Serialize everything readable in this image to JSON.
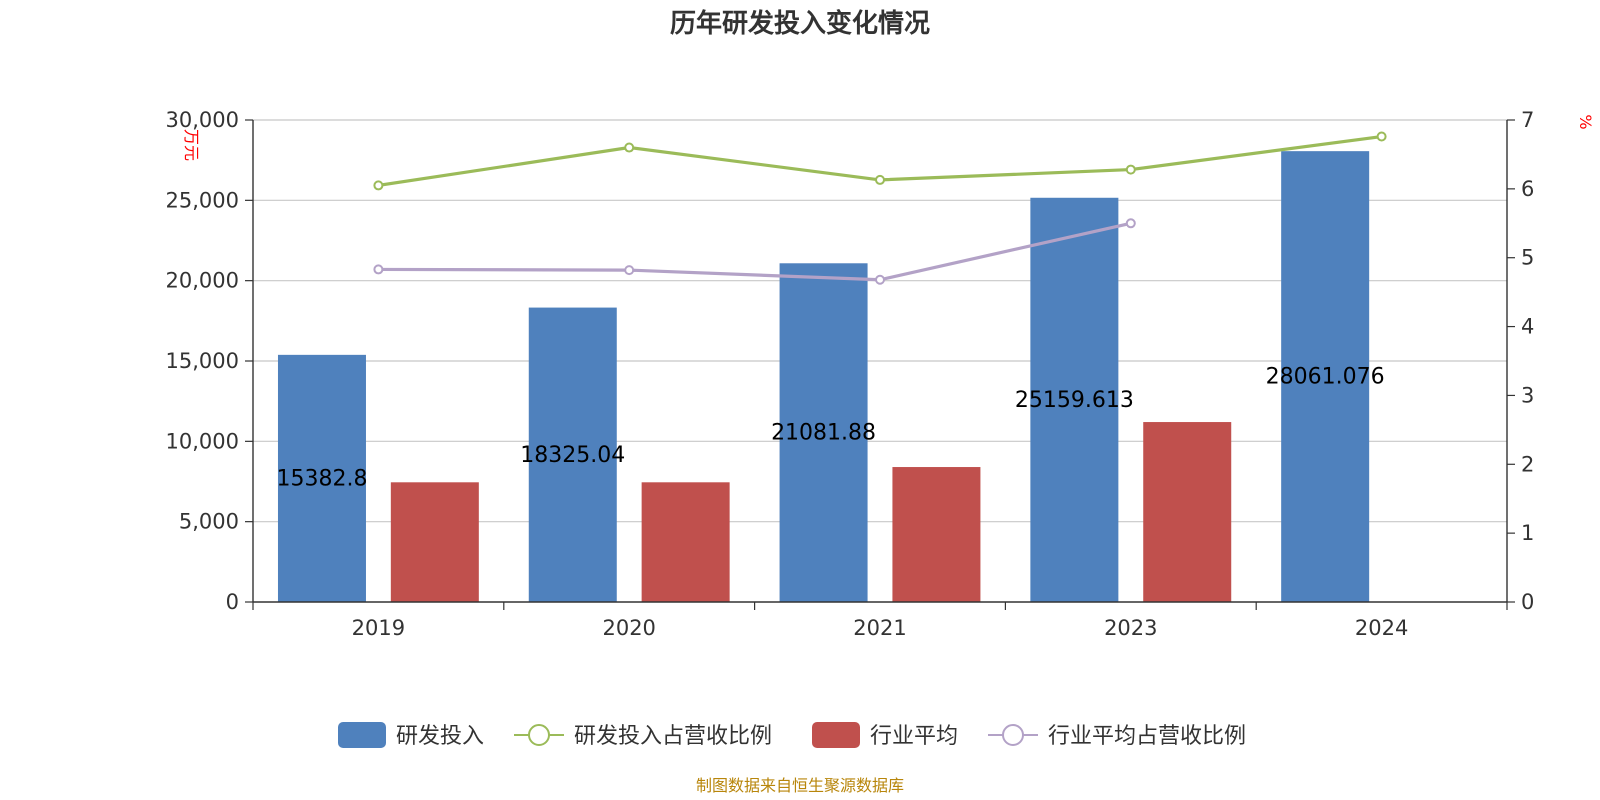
{
  "colors": {
    "rd_bar": "#4f81bd",
    "ind_bar": "#c0504d",
    "rd_line": "#9bbb59",
    "ind_line": "#b3a2c7",
    "grid": "#c8c8c8",
    "axis": "#333333",
    "unit": "#ff0000",
    "source": "#b8860b"
  },
  "chart_data": {
    "type": "bar",
    "title": "历年研发投入变化情况",
    "categories": [
      "2019",
      "2020",
      "2021",
      "2023",
      "2024"
    ],
    "y_left": {
      "unit": "万元",
      "ylim": [
        0,
        30000
      ],
      "ticks": [
        "0",
        "5,000",
        "10,000",
        "15,000",
        "20,000",
        "25,000",
        "30,000"
      ]
    },
    "y_right": {
      "unit": "%",
      "ylim": [
        0,
        7
      ],
      "ticks": [
        "0",
        "1",
        "2",
        "3",
        "4",
        "5",
        "6",
        "7"
      ]
    },
    "series": [
      {
        "name": "研发投入",
        "type": "bar",
        "axis": "left",
        "values": [
          15382.8,
          18325.04,
          21081.88,
          25159.613,
          28061.076
        ],
        "labels": [
          "15382.8",
          "18325.04",
          "21081.88",
          "25159.613",
          "28061.076"
        ]
      },
      {
        "name": "研发投入占营收比例",
        "type": "line",
        "axis": "right",
        "values": [
          6.05,
          6.6,
          6.13,
          6.28,
          6.76
        ]
      },
      {
        "name": "行业平均",
        "type": "bar",
        "axis": "left",
        "values": [
          7450,
          7450,
          8400,
          11200,
          null
        ]
      },
      {
        "name": "行业平均占营收比例",
        "type": "line",
        "axis": "right",
        "values": [
          4.83,
          4.82,
          4.68,
          5.5,
          null
        ]
      }
    ],
    "grid": true,
    "legend_position": "bottom-center",
    "source": "制图数据来自恒生聚源数据库"
  }
}
